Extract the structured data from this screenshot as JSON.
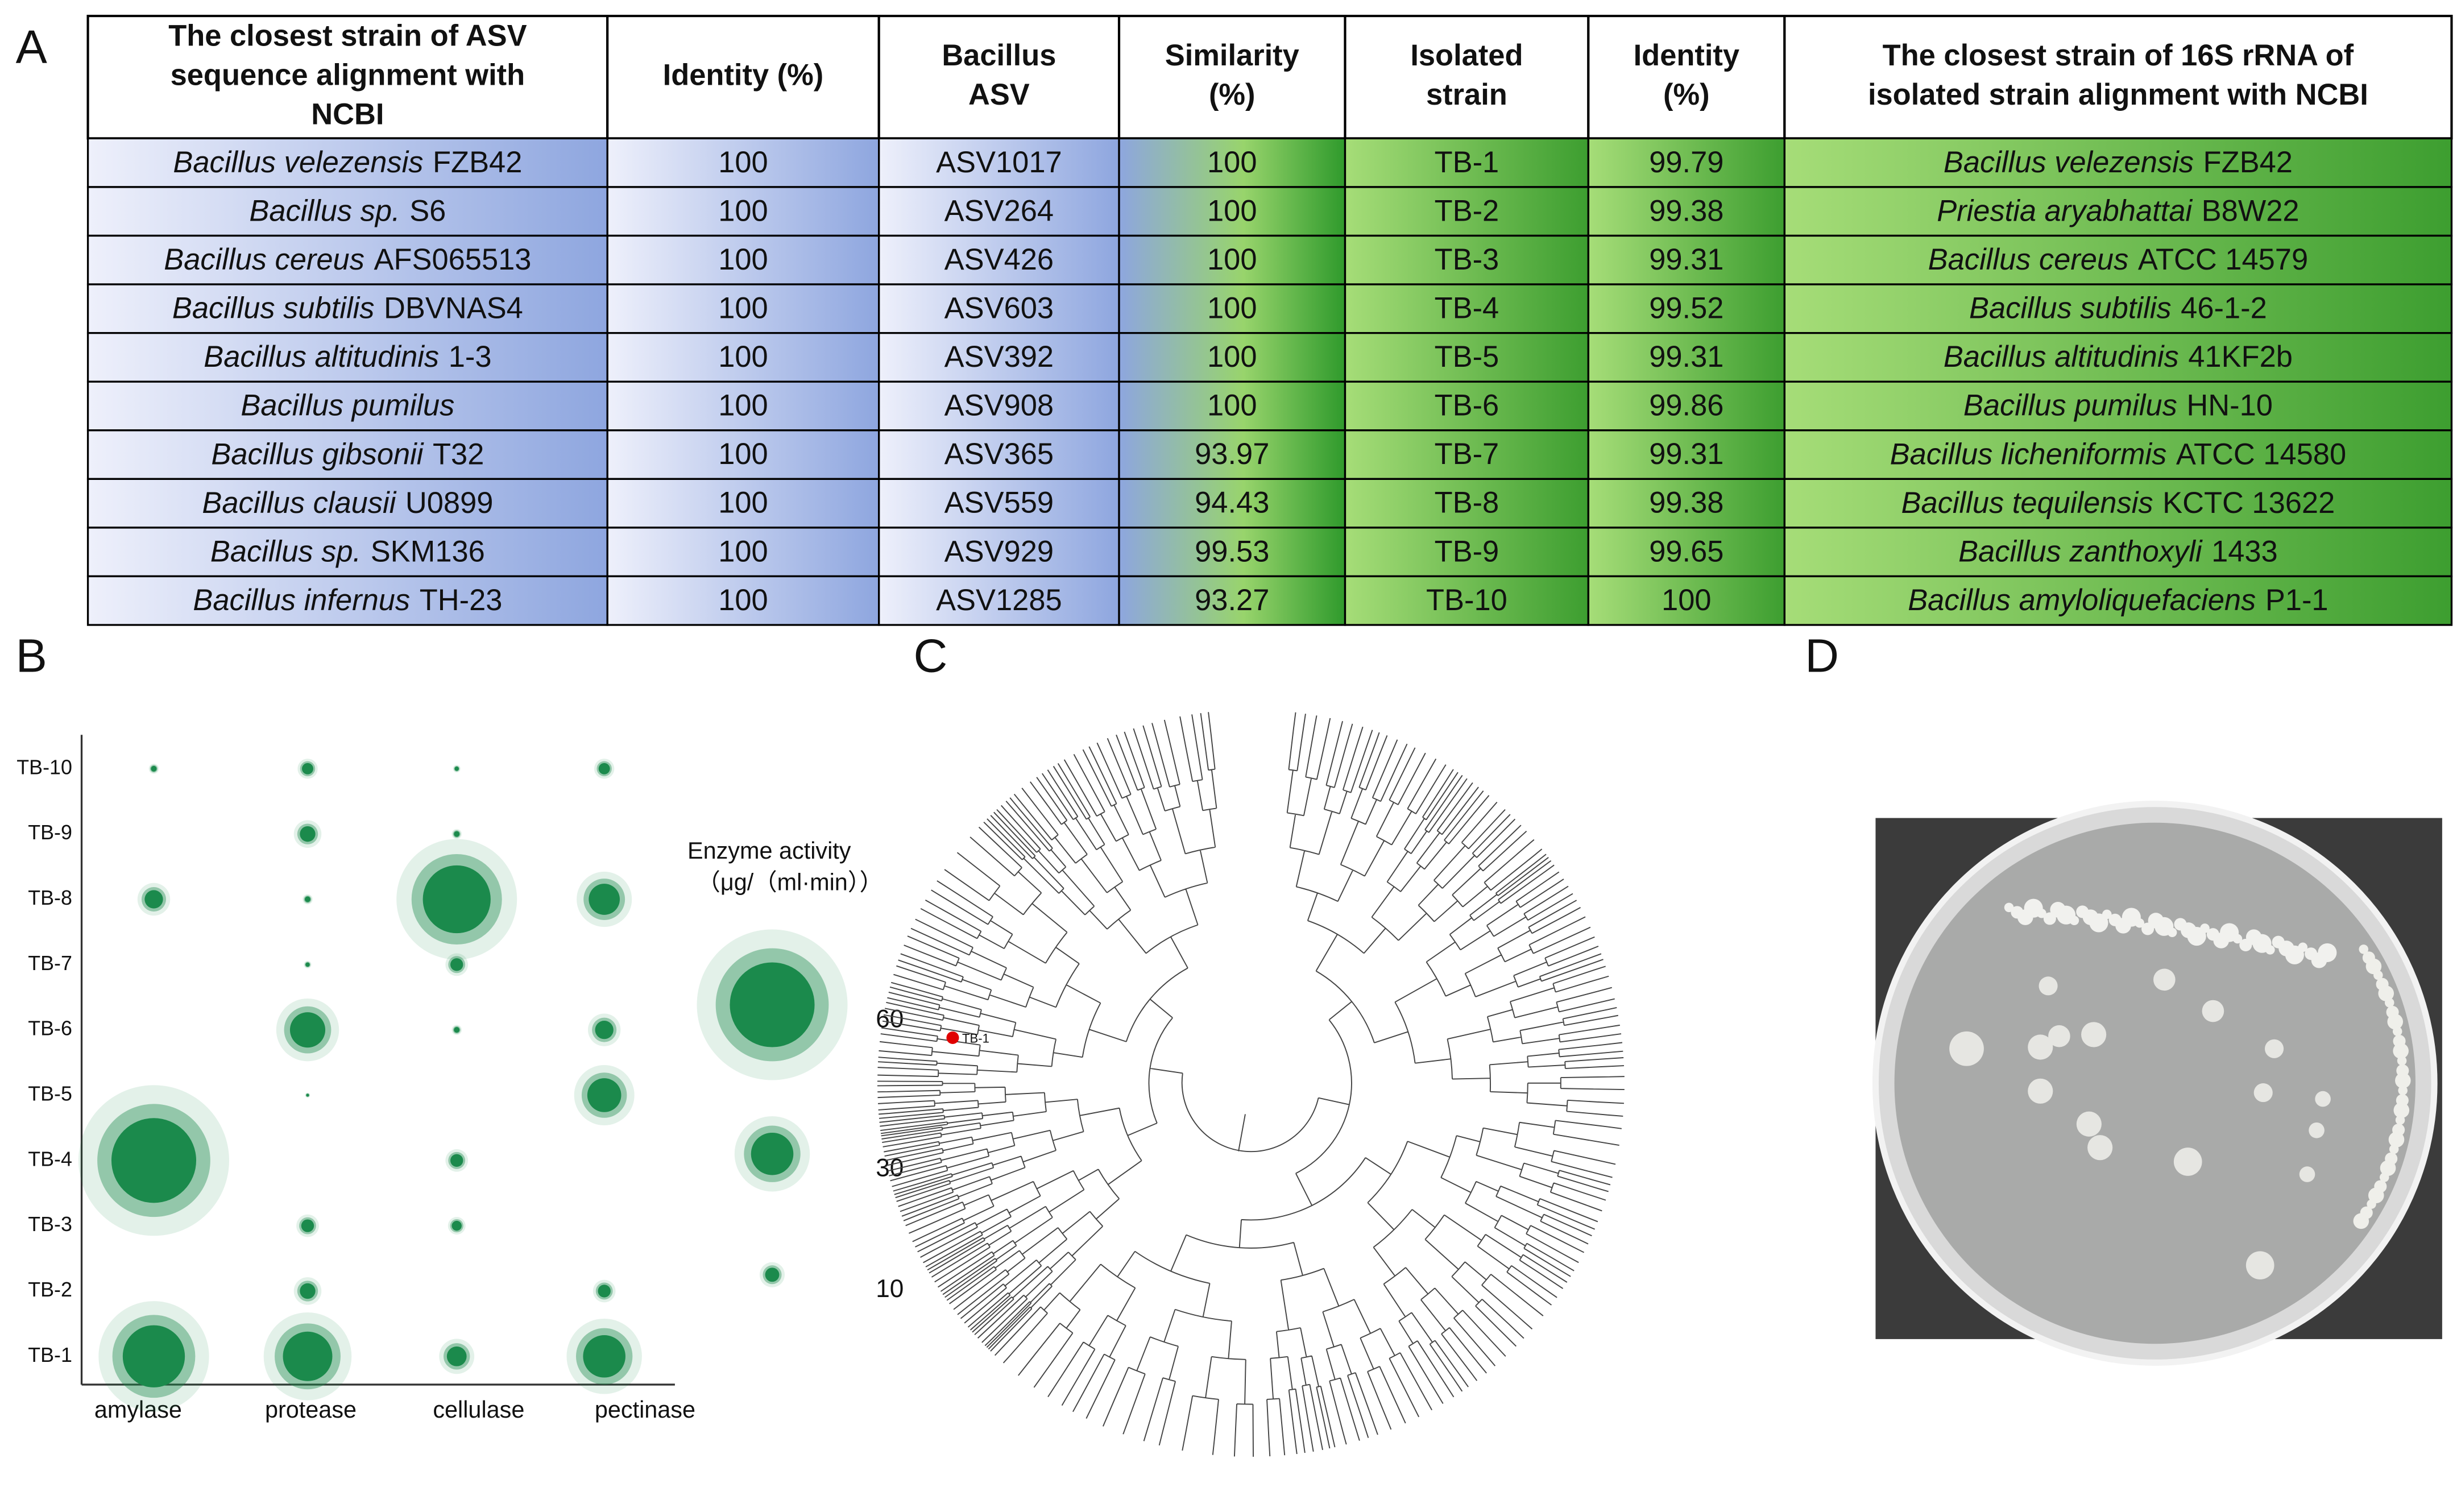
{
  "panels": {
    "a": "A",
    "b": "B",
    "c": "C",
    "d": "D"
  },
  "table": {
    "headers": [
      [
        "The closest strain of ASV",
        "sequence alignment with",
        "NCBI"
      ],
      [
        "Identity (%)"
      ],
      [
        "Bacillus",
        "ASV"
      ],
      [
        "Similarity",
        "(%)"
      ],
      [
        "Isolated",
        "strain"
      ],
      [
        "Identity",
        "(%)"
      ],
      [
        "The closest strain of 16S rRNA of",
        "isolated strain alignment with NCBI"
      ]
    ],
    "rows": [
      [
        {
          "species": "Bacillus velezensis",
          "strain": "FZB42"
        },
        "100",
        "ASV1017",
        "100",
        "TB-1",
        "99.79",
        {
          "species": "Bacillus velezensis",
          "strain": "FZB42"
        }
      ],
      [
        {
          "species": "Bacillus sp.",
          "strain": "S6"
        },
        "100",
        "ASV264",
        "100",
        "TB-2",
        "99.38",
        {
          "species": "Priestia aryabhattai",
          "strain": "B8W22"
        }
      ],
      [
        {
          "species": "Bacillus cereus",
          "strain": "AFS065513"
        },
        "100",
        "ASV426",
        "100",
        "TB-3",
        "99.31",
        {
          "species": "Bacillus cereus",
          "strain": "ATCC 14579"
        }
      ],
      [
        {
          "species": "Bacillus subtilis",
          "strain": "DBVNAS4"
        },
        "100",
        "ASV603",
        "100",
        "TB-4",
        "99.52",
        {
          "species": "Bacillus subtilis",
          "strain": "46-1-2"
        }
      ],
      [
        {
          "species": "Bacillus altitudinis",
          "strain": "1-3"
        },
        "100",
        "ASV392",
        "100",
        "TB-5",
        "99.31",
        {
          "species": "Bacillus altitudinis",
          "strain": "41KF2b"
        }
      ],
      [
        {
          "species": "Bacillus pumilus"
        },
        "100",
        "ASV908",
        "100",
        "TB-6",
        "99.86",
        {
          "species": "Bacillus pumilus",
          "strain": "HN-10"
        }
      ],
      [
        {
          "species": "Bacillus gibsonii",
          "strain": "T32"
        },
        "100",
        "ASV365",
        "93.97",
        "TB-7",
        "99.31",
        {
          "species": "Bacillus licheniformis",
          "strain": "ATCC 14580"
        }
      ],
      [
        {
          "species": "Bacillus clausii",
          "strain": "U0899"
        },
        "100",
        "ASV559",
        "94.43",
        "TB-8",
        "99.38",
        {
          "species": "Bacillus tequilensis",
          "strain": "KCTC 13622"
        }
      ],
      [
        {
          "species": "Bacillus sp.",
          "strain": "SKM136"
        },
        "100",
        "ASV929",
        "99.53",
        "TB-9",
        "99.65",
        {
          "species": "Bacillus zanthoxyli",
          "strain": "1433"
        }
      ],
      [
        {
          "species": "Bacillus infernus",
          "strain": "TH-23"
        },
        "100",
        "ASV1285",
        "93.27",
        "TB-10",
        "100",
        {
          "species": "Bacillus amyloliquefaciens",
          "strain": "P1-1"
        }
      ]
    ]
  },
  "chart_data": {
    "type": "bubble",
    "categories": [
      "TB-1",
      "TB-2",
      "TB-3",
      "TB-4",
      "TB-5",
      "TB-6",
      "TB-7",
      "TB-8",
      "TB-9",
      "TB-10"
    ],
    "color": "#1b8a4c",
    "series": [
      {
        "name": "amylase",
        "values": [
          44,
          null,
          null,
          60,
          null,
          null,
          null,
          13,
          null,
          4
        ]
      },
      {
        "name": "protease",
        "values": [
          35,
          11,
          9,
          null,
          2,
          25,
          3,
          4,
          11,
          8
        ]
      },
      {
        "name": "cellulase",
        "values": [
          14,
          null,
          7,
          9,
          null,
          4,
          9,
          48,
          4,
          3
        ]
      },
      {
        "name": "pectinase",
        "values": [
          30,
          9,
          null,
          null,
          24,
          13,
          null,
          22,
          null,
          8
        ]
      }
    ],
    "legend": {
      "title": [
        "Enzyme activity",
        "（μg/（ml·min））"
      ],
      "values": [
        60,
        30,
        10
      ]
    }
  },
  "tree": {
    "highlight": "TB-1"
  }
}
